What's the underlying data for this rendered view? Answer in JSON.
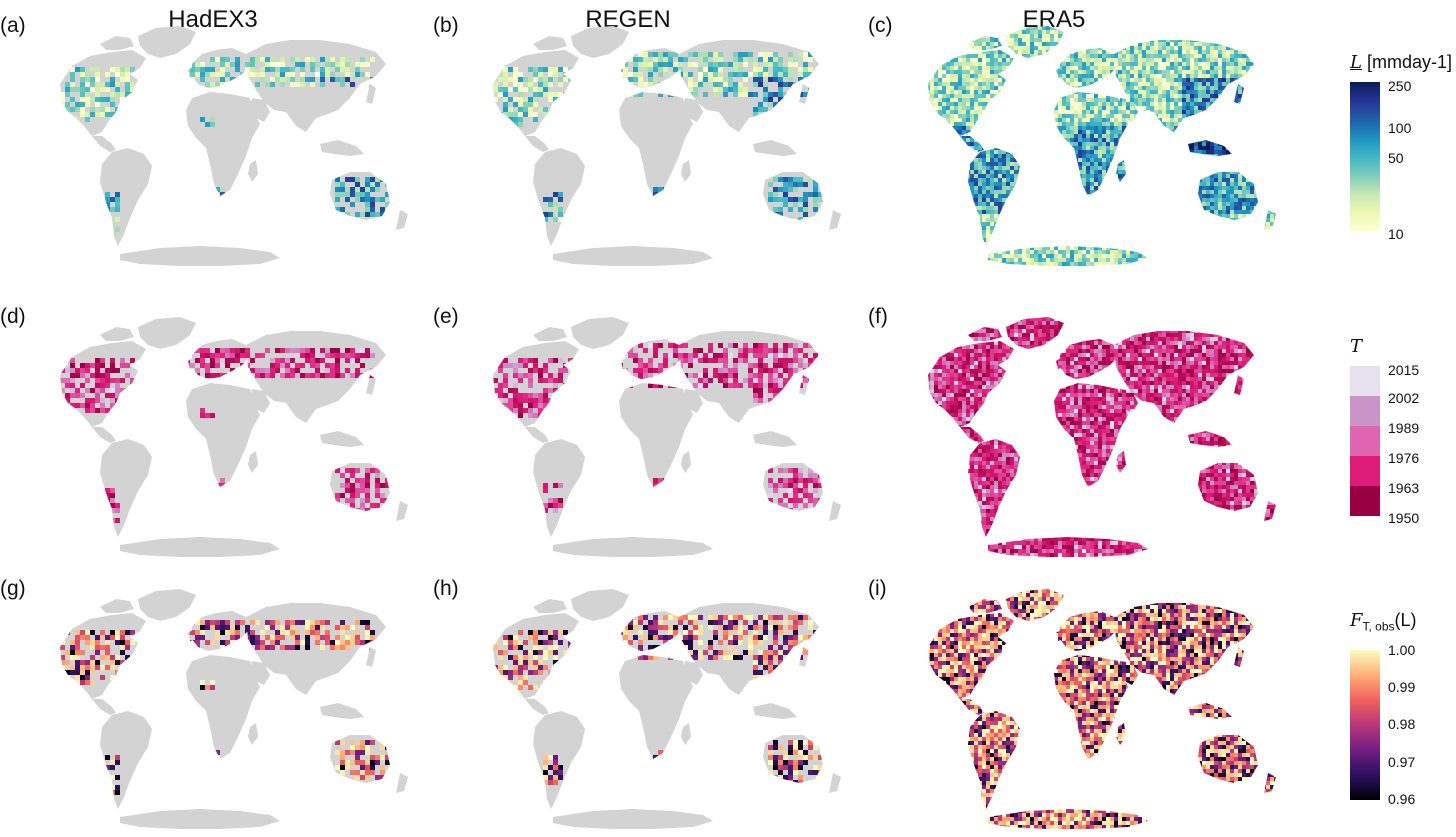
{
  "columns": [
    "HadEX3",
    "REGEN",
    "ERA5"
  ],
  "panels": [
    {
      "label": "(a)",
      "row": 0,
      "col": 0,
      "dataset": "HadEX3",
      "variable": "L",
      "coverage": "stations"
    },
    {
      "label": "(b)",
      "row": 0,
      "col": 1,
      "dataset": "REGEN",
      "variable": "L",
      "coverage": "partial"
    },
    {
      "label": "(c)",
      "row": 0,
      "col": 2,
      "dataset": "ERA5",
      "variable": "L",
      "coverage": "full"
    },
    {
      "label": "(d)",
      "row": 1,
      "col": 0,
      "dataset": "HadEX3",
      "variable": "T",
      "coverage": "stations"
    },
    {
      "label": "(e)",
      "row": 1,
      "col": 1,
      "dataset": "REGEN",
      "variable": "T",
      "coverage": "partial"
    },
    {
      "label": "(f)",
      "row": 1,
      "col": 2,
      "dataset": "ERA5",
      "variable": "T",
      "coverage": "full"
    },
    {
      "label": "(g)",
      "row": 2,
      "col": 0,
      "dataset": "HadEX3",
      "variable": "F",
      "coverage": "stations"
    },
    {
      "label": "(h)",
      "row": 2,
      "col": 1,
      "dataset": "REGEN",
      "variable": "F",
      "coverage": "partial"
    },
    {
      "label": "(i)",
      "row": 2,
      "col": 2,
      "dataset": "ERA5",
      "variable": "F",
      "coverage": "full"
    }
  ],
  "colorbars": {
    "L": {
      "title_symbol": "L",
      "title_unit": "[mmday-1]",
      "ticks": [
        "250",
        "100",
        "50",
        "10"
      ],
      "scale": "log",
      "range": [
        10,
        250
      ],
      "colors": [
        "#081d58",
        "#253494",
        "#225ea8",
        "#1d91c0",
        "#41b6c4",
        "#7fcdbb",
        "#c7e9b4",
        "#edf8b1",
        "#ffffd9"
      ]
    },
    "T": {
      "title_symbol": "T",
      "ticks": [
        "2015",
        "2002",
        "1989",
        "1976",
        "1963",
        "1950"
      ],
      "colors": [
        "#e7e1ef",
        "#c994c7",
        "#df65b0",
        "#dd1c77",
        "#980043"
      ]
    },
    "F": {
      "title_symbol": "F",
      "title_sub": "T, obs",
      "title_arg": "(L)",
      "ticks": [
        "1.00",
        "0.99",
        "0.98",
        "0.97",
        "0.96"
      ],
      "range": [
        0.96,
        1.0
      ],
      "colors": [
        "#fcfdbf",
        "#feb078",
        "#f1605d",
        "#b73779",
        "#721f81",
        "#2c115f",
        "#000004"
      ]
    }
  },
  "land_color": "#d3d3d3"
}
